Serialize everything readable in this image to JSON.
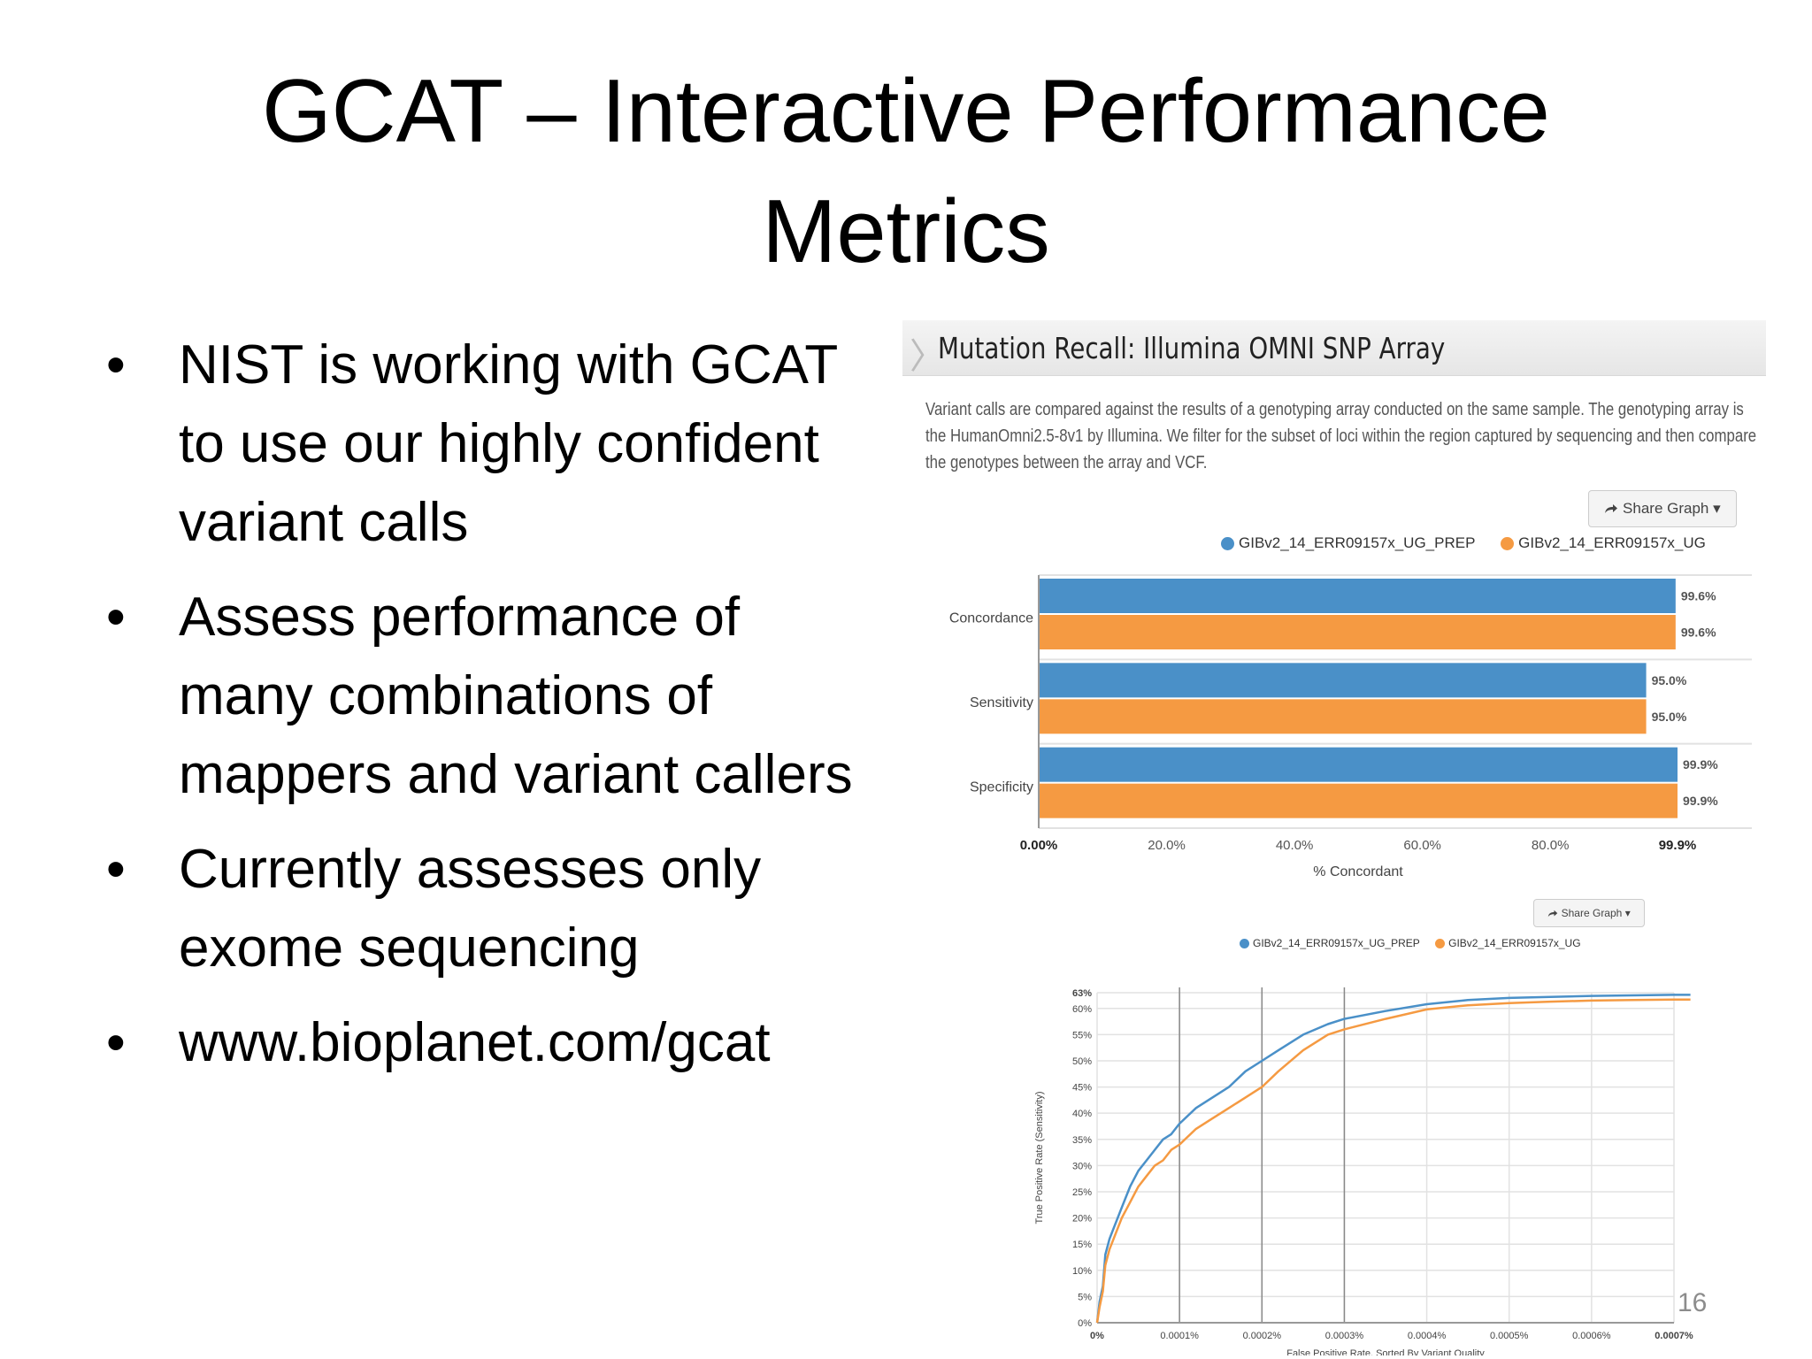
{
  "slide": {
    "title_lines": [
      "GCAT – Interactive Performance",
      "Metrics"
    ],
    "bullets": [
      "NIST is working with GCAT to use our highly confident variant calls",
      "Assess performance of many combinations of mappers and variant callers",
      "Currently assesses only exome sequencing",
      "www.bioplanet.com/gcat"
    ],
    "bullet_glyph": "•",
    "slide_number": "16"
  },
  "panel": {
    "title": "Mutation Recall: Illumina OMNI SNP Array",
    "chevron": "〉",
    "description": "Variant calls are compared against the results of a genotyping array conducted on the same sample. The genotyping array is the HumanOmni2.5-8v1 by Illumina. We filter for the subset of loci within the region captured by sequencing and then compare the genotypes between the array and VCF.",
    "share_label": "Share Graph",
    "share_icon": "share-arrow-icon",
    "colors": {
      "series_1": "#4a90c8",
      "series_2": "#f59a42",
      "grid": "#e2e2e2",
      "vline": "#888888"
    }
  },
  "chart_data": [
    {
      "type": "bar",
      "categories": [
        "Concordance",
        "Sensitivity",
        "Specificity"
      ],
      "series": [
        {
          "name": "GIBv2_14_ERR09157x_UG_PREP",
          "values": [
            99.6,
            95.0,
            99.9
          ],
          "labels": [
            "99.6%",
            "95.0%",
            "99.9%"
          ]
        },
        {
          "name": "GIBv2_14_ERR09157x_UG",
          "values": [
            99.6,
            95.0,
            99.9
          ],
          "labels": [
            "99.6%",
            "95.0%",
            "99.9%"
          ]
        }
      ],
      "x_ticks": [
        {
          "value": 0,
          "label": "0.00%"
        },
        {
          "value": 20,
          "label": "20.0%"
        },
        {
          "value": 40,
          "label": "40.0%"
        },
        {
          "value": 60,
          "label": "60.0%"
        },
        {
          "value": 80,
          "label": "80.0%"
        },
        {
          "value": 99.9,
          "label": "99.9%"
        }
      ],
      "xlim": [
        0,
        99.9
      ],
      "xlabel": "% Concordant",
      "legend_position": "top"
    },
    {
      "type": "line",
      "series": [
        {
          "name": "GIBv2_14_ERR09157x_UG_PREP",
          "points": [
            [
              0,
              0
            ],
            [
              3e-06,
              4
            ],
            [
              7e-06,
              7
            ],
            [
              1e-05,
              13
            ],
            [
              1.5e-05,
              16
            ],
            [
              2e-05,
              18
            ],
            [
              3e-05,
              22
            ],
            [
              4e-05,
              26
            ],
            [
              5e-05,
              29
            ],
            [
              6e-05,
              31
            ],
            [
              7e-05,
              33
            ],
            [
              8e-05,
              35
            ],
            [
              9e-05,
              36
            ],
            [
              0.0001,
              38
            ],
            [
              0.00012,
              41
            ],
            [
              0.00014,
              43
            ],
            [
              0.00016,
              45
            ],
            [
              0.00018,
              48
            ],
            [
              0.0002,
              50
            ],
            [
              0.00022,
              52
            ],
            [
              0.00025,
              55
            ],
            [
              0.00028,
              57
            ],
            [
              0.0003,
              58
            ],
            [
              0.00035,
              59.5
            ],
            [
              0.0004,
              60.8
            ],
            [
              0.00045,
              61.6
            ],
            [
              0.0005,
              62
            ],
            [
              0.00055,
              62.2
            ],
            [
              0.0006,
              62.4
            ],
            [
              0.00065,
              62.5
            ],
            [
              0.0007,
              62.6
            ],
            [
              0.00072,
              62.6
            ]
          ]
        },
        {
          "name": "GIBv2_14_ERR09157x_UG",
          "points": [
            [
              0,
              0
            ],
            [
              3e-06,
              3
            ],
            [
              7e-06,
              6
            ],
            [
              1e-05,
              11
            ],
            [
              1.5e-05,
              14
            ],
            [
              2e-05,
              16
            ],
            [
              3e-05,
              20
            ],
            [
              4e-05,
              23
            ],
            [
              5e-05,
              26
            ],
            [
              6e-05,
              28
            ],
            [
              7e-05,
              30
            ],
            [
              8e-05,
              31
            ],
            [
              9e-05,
              33
            ],
            [
              0.0001,
              34
            ],
            [
              0.00012,
              37
            ],
            [
              0.00014,
              39
            ],
            [
              0.00016,
              41
            ],
            [
              0.00018,
              43
            ],
            [
              0.0002,
              45
            ],
            [
              0.00022,
              48
            ],
            [
              0.00025,
              52
            ],
            [
              0.00028,
              55
            ],
            [
              0.0003,
              56
            ],
            [
              0.00035,
              58
            ],
            [
              0.0004,
              59.8
            ],
            [
              0.00045,
              60.6
            ],
            [
              0.0005,
              61
            ],
            [
              0.00055,
              61.3
            ],
            [
              0.0006,
              61.5
            ],
            [
              0.00065,
              61.6
            ],
            [
              0.0007,
              61.7
            ],
            [
              0.00072,
              61.7
            ]
          ]
        }
      ],
      "x_ticks": [
        {
          "value": 0,
          "label": "0%"
        },
        {
          "value": 0.0001,
          "label": "0.0001%"
        },
        {
          "value": 0.0002,
          "label": "0.0002%"
        },
        {
          "value": 0.0003,
          "label": "0.0003%"
        },
        {
          "value": 0.0004,
          "label": "0.0004%"
        },
        {
          "value": 0.0005,
          "label": "0.0005%"
        },
        {
          "value": 0.0006,
          "label": "0.0006%"
        },
        {
          "value": 0.0007,
          "label": "0.0007%"
        }
      ],
      "y_ticks": [
        {
          "value": 0,
          "label": "0%"
        },
        {
          "value": 5,
          "label": "5%"
        },
        {
          "value": 10,
          "label": "10%"
        },
        {
          "value": 15,
          "label": "15%"
        },
        {
          "value": 20,
          "label": "20%"
        },
        {
          "value": 25,
          "label": "25%"
        },
        {
          "value": 30,
          "label": "30%"
        },
        {
          "value": 35,
          "label": "35%"
        },
        {
          "value": 40,
          "label": "40%"
        },
        {
          "value": 45,
          "label": "45%"
        },
        {
          "value": 50,
          "label": "50%"
        },
        {
          "value": 55,
          "label": "55%"
        },
        {
          "value": 60,
          "label": "60%"
        },
        {
          "value": 63,
          "label": "63%"
        }
      ],
      "xlim": [
        0,
        0.0007
      ],
      "ylim": [
        0,
        63
      ],
      "vertical_lines_at": [
        0.0001,
        0.0002,
        0.0003
      ],
      "xlabel": "False Positive Rate, Sorted By Variant Quality",
      "ylabel": "True Positive Rate (Sensitivity)",
      "legend_position": "top"
    }
  ]
}
